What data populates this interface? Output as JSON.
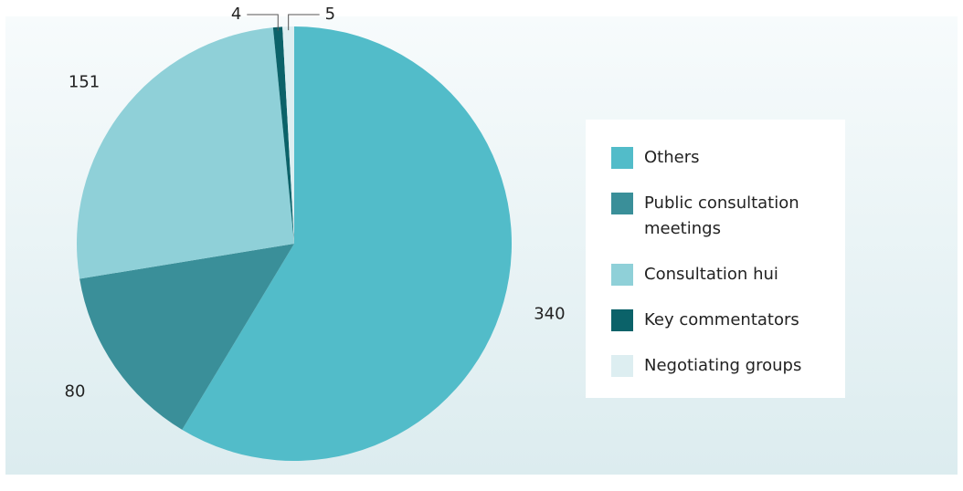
{
  "chart_data": {
    "type": "pie",
    "categories": [
      "Others",
      "Public consultation meetings",
      "Consultation hui",
      "Key commentators",
      "Negotiating groups"
    ],
    "values": [
      340,
      80,
      151,
      4,
      5
    ],
    "colors": [
      "#52bcc9",
      "#3a8f99",
      "#8fd0d8",
      "#0b6269",
      "#ddeef1"
    ],
    "legend": "right"
  }
}
